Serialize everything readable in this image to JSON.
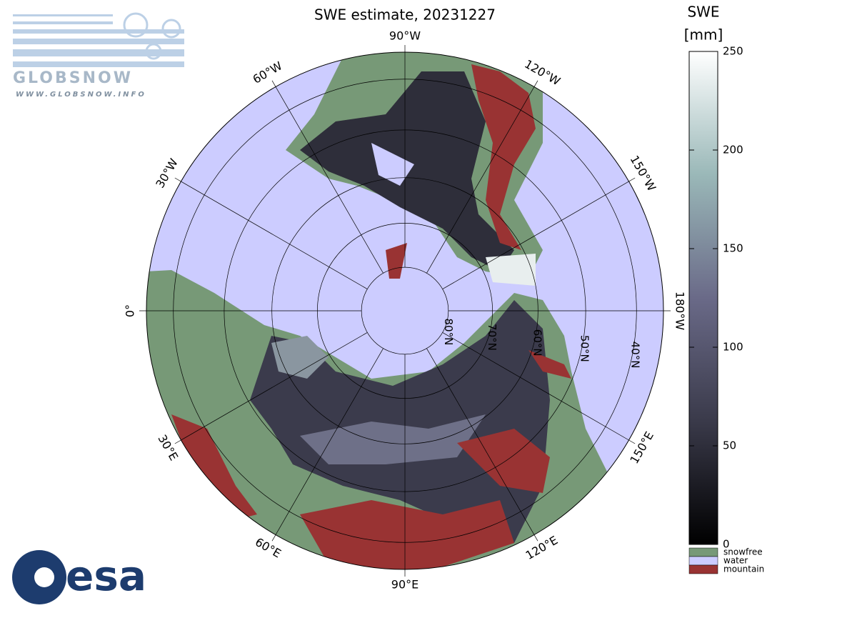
{
  "title": "SWE estimate, 20231227",
  "logo_top": {
    "name": "GLOBSNOW",
    "url": "WWW.GLOBSNOW.INFO"
  },
  "logo_bottom": "esa",
  "map": {
    "water_color": "#ccccff",
    "longitude_labels": [
      {
        "lon": 0,
        "label": "0°"
      },
      {
        "lon": -30,
        "label": "30°W"
      },
      {
        "lon": -60,
        "label": "60°W"
      },
      {
        "lon": -90,
        "label": "90°W"
      },
      {
        "lon": -120,
        "label": "120°W"
      },
      {
        "lon": -150,
        "label": "150°W"
      },
      {
        "lon": -180,
        "label": "180°W"
      },
      {
        "lon": 150,
        "label": "150°E"
      },
      {
        "lon": 120,
        "label": "120°E"
      },
      {
        "lon": 90,
        "label": "90°E"
      },
      {
        "lon": 60,
        "label": "60°E"
      },
      {
        "lon": 30,
        "label": "30°E"
      }
    ],
    "latitude_labels": [
      {
        "lat": 80,
        "label": "80°N"
      },
      {
        "lat": 70,
        "label": "70°N"
      },
      {
        "lat": 60,
        "label": "60°N"
      },
      {
        "lat": 50,
        "label": "50°N"
      },
      {
        "lat": 40,
        "label": "40°N"
      }
    ]
  },
  "colorbar": {
    "title": "SWE",
    "unit": "[mm]",
    "range": [
      0,
      250
    ],
    "ticks": [
      0,
      50,
      100,
      150,
      200,
      250
    ],
    "legend": [
      {
        "label": "snowfree",
        "color": "#779977"
      },
      {
        "label": "water",
        "color": "#ccccff"
      },
      {
        "label": "mountain",
        "color": "#993333"
      }
    ]
  }
}
